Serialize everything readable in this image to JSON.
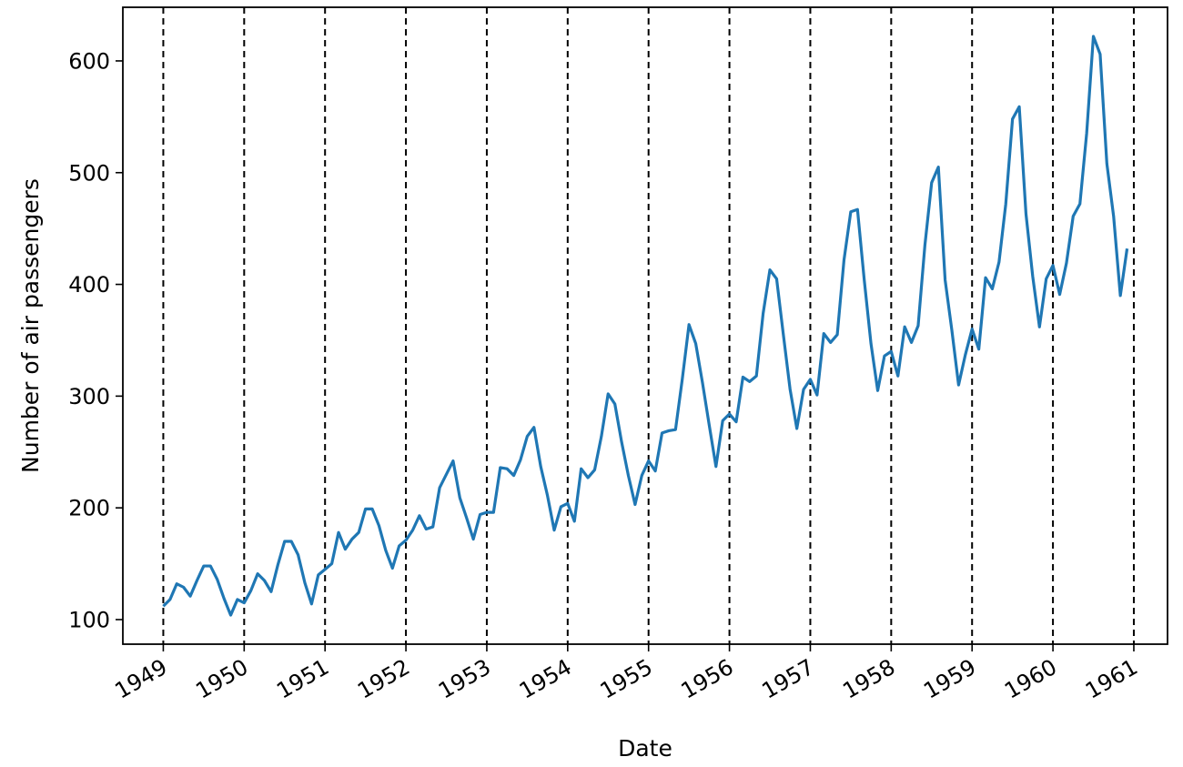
{
  "chart_data": {
    "type": "line",
    "title": "",
    "xlabel": "Date",
    "ylabel": "Number of air passengers",
    "x_start": "1949-01",
    "x_end": "1960-12",
    "xlim": [
      "1948-07",
      "1961-06"
    ],
    "ylim": [
      78,
      648
    ],
    "x_tick_labels": [
      "1949",
      "1950",
      "1951",
      "1952",
      "1953",
      "1954",
      "1955",
      "1956",
      "1957",
      "1958",
      "1959",
      "1960",
      "1961"
    ],
    "y_ticks": [
      100,
      200,
      300,
      400,
      500,
      600
    ],
    "y_tick_labels": [
      "100",
      "200",
      "300",
      "400",
      "500",
      "600"
    ],
    "vlines": [
      "1949",
      "1950",
      "1951",
      "1952",
      "1953",
      "1954",
      "1955",
      "1956",
      "1957",
      "1958",
      "1959",
      "1960",
      "1961"
    ],
    "grid": false,
    "legend": "none",
    "series": [
      {
        "color": "#1f77b4",
        "values": [
          112,
          118,
          132,
          129,
          121,
          135,
          148,
          148,
          136,
          119,
          104,
          118,
          115,
          126,
          141,
          135,
          125,
          149,
          170,
          170,
          158,
          133,
          114,
          140,
          145,
          150,
          178,
          163,
          172,
          178,
          199,
          199,
          184,
          162,
          146,
          166,
          171,
          180,
          193,
          181,
          183,
          218,
          230,
          242,
          209,
          191,
          172,
          194,
          196,
          196,
          236,
          235,
          229,
          243,
          264,
          272,
          237,
          211,
          180,
          201,
          204,
          188,
          235,
          227,
          234,
          264,
          302,
          293,
          259,
          229,
          203,
          229,
          242,
          233,
          267,
          269,
          270,
          315,
          364,
          347,
          312,
          274,
          237,
          278,
          284,
          277,
          317,
          313,
          318,
          374,
          413,
          405,
          355,
          306,
          271,
          306,
          315,
          301,
          356,
          348,
          355,
          422,
          465,
          467,
          404,
          347,
          305,
          336,
          340,
          318,
          362,
          348,
          363,
          435,
          491,
          505,
          404,
          359,
          310,
          337,
          360,
          342,
          406,
          396,
          420,
          472,
          548,
          559,
          463,
          407,
          362,
          405,
          417,
          391,
          419,
          461,
          472,
          535,
          622,
          606,
          508,
          461,
          390,
          432
        ]
      }
    ]
  }
}
